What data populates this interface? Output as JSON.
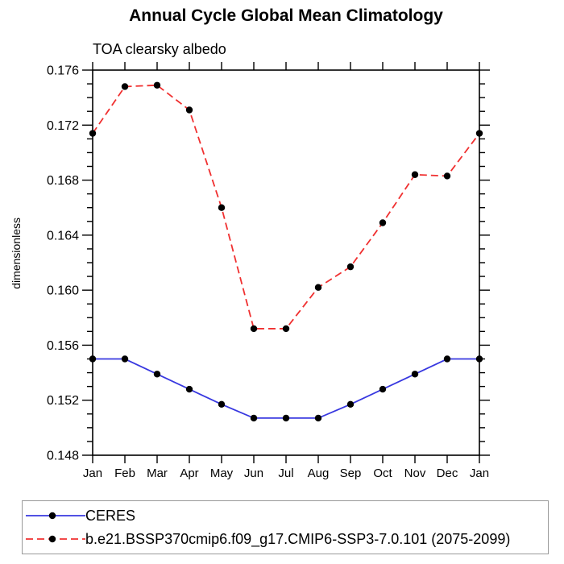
{
  "title": "Annual Cycle Global Mean Climatology",
  "subtitle": "TOA clearsky albedo",
  "legend": {
    "entries": [
      {
        "label": "CERES"
      },
      {
        "label": "b.e21.BSSP370cmip6.f09_g17.CMIP6-SSP3-7.0.101 (2075-2099)"
      }
    ]
  },
  "colors": {
    "ceres_line": "#3838e0",
    "model_line": "#f03030",
    "marker": "#000000",
    "axis": "#000000",
    "legend_border": "#999999",
    "background": "#ffffff"
  },
  "chart_data": {
    "type": "line",
    "title": "Annual Cycle Global Mean Climatology",
    "subtitle": "TOA clearsky albedo",
    "xlabel": "",
    "ylabel": "dimensionless",
    "categories": [
      "Jan",
      "Feb",
      "Mar",
      "Apr",
      "May",
      "Jun",
      "Jul",
      "Aug",
      "Sep",
      "Oct",
      "Nov",
      "Dec",
      "Jan"
    ],
    "ylim": [
      0.148,
      0.176
    ],
    "ytick_interval": 0.004,
    "yminor_interval": 0.001,
    "ytick_format_decimals": 3,
    "grid": false,
    "legend_position": "bottom",
    "series": [
      {
        "name": "CERES",
        "color": "#3838e0",
        "line_style": "solid",
        "marker": "black-circle",
        "values": [
          0.155,
          0.155,
          0.1539,
          0.1528,
          0.1517,
          0.1507,
          0.1507,
          0.1507,
          0.1517,
          0.1528,
          0.1539,
          0.155,
          0.155
        ]
      },
      {
        "name": "b.e21.BSSP370cmip6.f09_g17.CMIP6-SSP3-7.0.101 (2075-2099)",
        "color": "#f03030",
        "line_style": "dashed",
        "marker": "black-circle",
        "values": [
          0.1714,
          0.1748,
          0.1749,
          0.1731,
          0.166,
          0.1572,
          0.1572,
          0.1602,
          0.1617,
          0.1649,
          0.1684,
          0.1683,
          0.1714
        ]
      }
    ]
  }
}
